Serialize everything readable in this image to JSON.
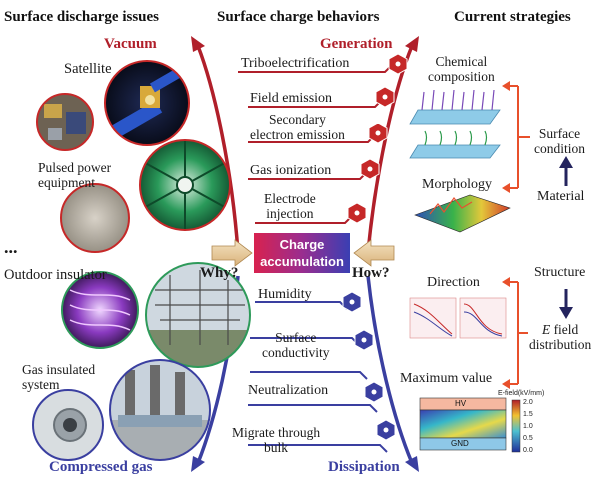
{
  "headers": {
    "left": "Surface discharge issues",
    "middle": "Surface charge behaviors",
    "right": "Current strategies"
  },
  "environments": {
    "top": "Vacuum",
    "bottom": "Compressed gas"
  },
  "left_items": {
    "satellite": "Satellite",
    "pulsed": "Pulsed power\nequipment",
    "ellipsis": "...",
    "outdoor": "Outdoor insulator",
    "gis": "Gas insulated\nsystem"
  },
  "generation": {
    "title": "Generation",
    "items": [
      "Triboelectrification",
      "Field emission",
      "Secondary\nelectron emission",
      "Gas ionization",
      "Electrode\ninjection"
    ]
  },
  "center": {
    "label": "Charge\naccumulation",
    "why": "Why?",
    "how": "How?"
  },
  "dissipation": {
    "title": "Dissipation",
    "items": [
      "Humidity",
      "Surface\nconductivity",
      "Neutralization",
      "Migrate through\nbulk"
    ]
  },
  "strategies": {
    "chemical": "Chemical\ncomposition",
    "morphology": "Morphology",
    "surface_condition": "Surface\ncondition",
    "material": "Material",
    "structure": "Structure",
    "direction": "Direction",
    "e_field_italic": "E",
    "e_field_rest": " field\ndistribution",
    "maximum": "Maximum value"
  },
  "efield_plot": {
    "title": "E-field(kV/mm)",
    "ticks": [
      "2.0",
      "1.5",
      "1.0",
      "0.5",
      "0.0"
    ],
    "hv": "HV",
    "gnd": "GND"
  },
  "colors": {
    "generation": "#b01f2a",
    "dissipation": "#3a3fa0",
    "bracket": "#e8502b",
    "material_arrow": "#24245e"
  }
}
